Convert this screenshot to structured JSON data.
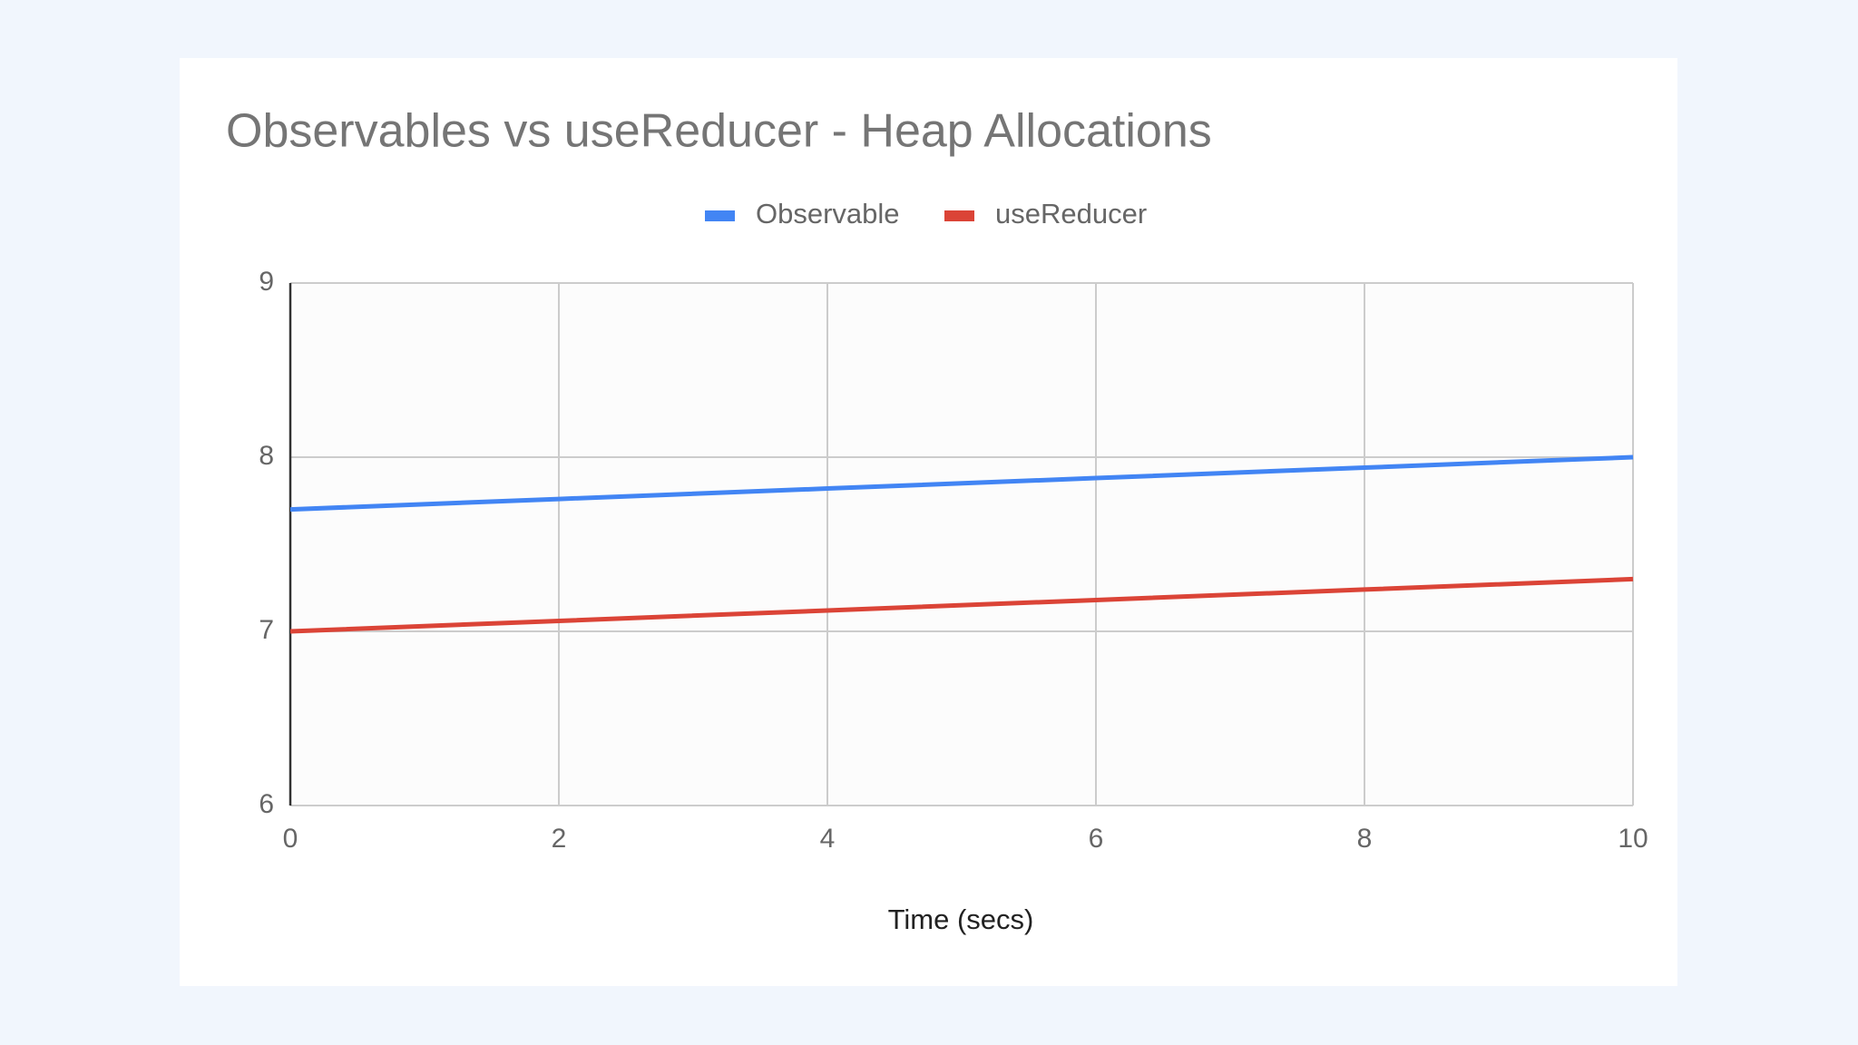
{
  "chart_data": {
    "type": "line",
    "title": "Observables vs useReducer - Heap Allocations",
    "x_label": "Time (secs)",
    "x": [
      0,
      2,
      4,
      6,
      8,
      10
    ],
    "series": [
      {
        "name": "Observable",
        "color": "#4285f4",
        "values": [
          7.7,
          7.76,
          7.82,
          7.88,
          7.94,
          8.0
        ]
      },
      {
        "name": "useReducer",
        "color": "#db4437",
        "values": [
          7.0,
          7.06,
          7.12,
          7.18,
          7.24,
          7.3
        ]
      }
    ],
    "xlim": [
      0,
      10
    ],
    "xticks": [
      0,
      2,
      4,
      6,
      8,
      10
    ],
    "ylim": [
      6,
      9
    ],
    "yticks": [
      6,
      7,
      8,
      9
    ],
    "grid": true,
    "legend": "top"
  }
}
